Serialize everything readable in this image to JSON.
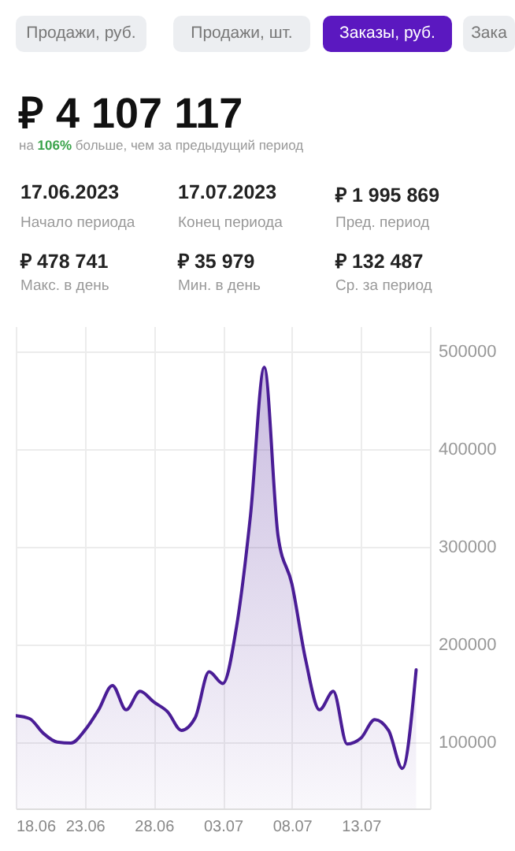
{
  "chart_data": {
    "type": "area",
    "title": "₽ 4 107 117",
    "subtitle": "на 106% больше, чем за предыдущий период",
    "annotations": [
      "Продажи, руб.",
      "Продажи, шт.",
      "Заказы, руб.",
      "Зака",
      "17.06.2023",
      "Начало периода",
      "17.07.2023",
      "Конец периода",
      "₽  1 995 869",
      "Пред. период",
      "₽ 478 741",
      "Макс. в день",
      "₽ 35 979",
      "Мин. в день",
      "₽ 132 487",
      "Ср. за период"
    ],
    "x": [
      "2023-06-18",
      "2023-06-19",
      "2023-06-20",
      "2023-06-21",
      "2023-06-22",
      "2023-06-23",
      "2023-06-24",
      "2023-06-25",
      "2023-06-26",
      "2023-06-27",
      "2023-06-28",
      "2023-06-29",
      "2023-06-30",
      "2023-07-01",
      "2023-07-02",
      "2023-07-03",
      "2023-07-04",
      "2023-07-05",
      "2023-07-06",
      "2023-07-07",
      "2023-07-08",
      "2023-07-09",
      "2023-07-10",
      "2023-07-11",
      "2023-07-12",
      "2023-07-13",
      "2023-07-14",
      "2023-07-15",
      "2023-07-16",
      "2023-07-17"
    ],
    "series": [
      {
        "color": "#4a1d96",
        "values": [
          127000,
          124000,
          109000,
          100000,
          99000,
          112000,
          133000,
          158000,
          133000,
          152000,
          141000,
          131000,
          112000,
          125000,
          172000,
          160000,
          219000,
          332000,
          484000,
          311000,
          262000,
          184000,
          133000,
          152000,
          98000,
          104000,
          123000,
          112000,
          73000,
          174000
        ]
      }
    ],
    "xlim": [
      "2023-06-18",
      "2023-07-18"
    ],
    "xticks": [
      {
        "value": "2023-06-18",
        "label": "18.06"
      },
      {
        "value": "2023-06-23",
        "label": "23.06"
      },
      {
        "value": "2023-06-28",
        "label": "28.06"
      },
      {
        "value": "2023-07-03",
        "label": "03.07"
      },
      {
        "value": "2023-07-08",
        "label": "08.07"
      },
      {
        "value": "2023-07-13",
        "label": "13.07"
      }
    ],
    "ylim": [
      32000,
      526000
    ],
    "yticks": [
      100000,
      200000,
      300000,
      400000,
      500000
    ],
    "grid": true
  }
}
